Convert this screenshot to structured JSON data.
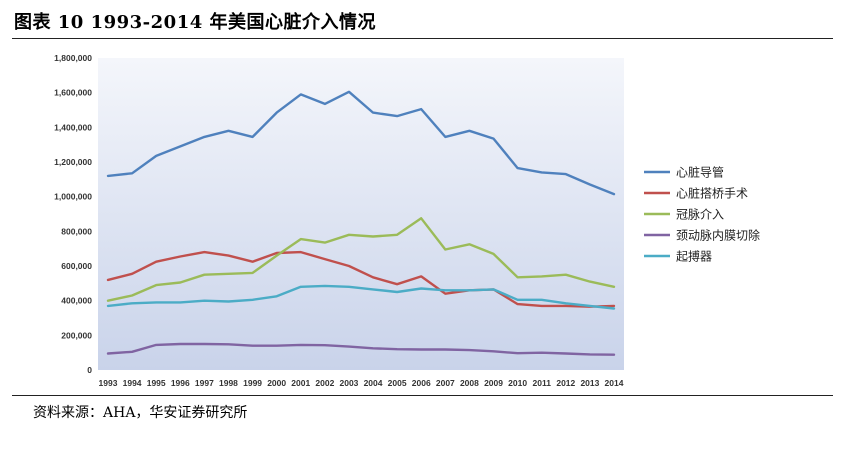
{
  "header": {
    "title": "图表 10 1993-2014 年美国心脏介入情况"
  },
  "footer": {
    "source": "资料来源：AHA，华安证券研究所"
  },
  "chart_data": {
    "type": "line",
    "title": "",
    "xlabel": "",
    "ylabel": "",
    "ylim": [
      0,
      1800000
    ],
    "yticks": [
      0,
      200000,
      400000,
      600000,
      800000,
      1000000,
      1200000,
      1400000,
      1600000,
      1800000
    ],
    "ytick_labels": [
      "0",
      "200,000",
      "400,000",
      "600,000",
      "800,000",
      "1,000,000",
      "1,200,000",
      "1,400,000",
      "1,600,000",
      "1,800,000"
    ],
    "grid": false,
    "legend": "right",
    "categories": [
      "1993",
      "1994",
      "1995",
      "1996",
      "1997",
      "1998",
      "1999",
      "2000",
      "2001",
      "2002",
      "2003",
      "2004",
      "2005",
      "2006",
      "2007",
      "2008",
      "2009",
      "2010",
      "2011",
      "2012",
      "2013",
      "2014"
    ],
    "series": [
      {
        "name": "心脏导管",
        "color": "#4f81bd",
        "values": [
          1120000,
          1135000,
          1235000,
          1290000,
          1345000,
          1380000,
          1345000,
          1485000,
          1590000,
          1535000,
          1605000,
          1485000,
          1465000,
          1505000,
          1345000,
          1380000,
          1335000,
          1165000,
          1140000,
          1130000,
          1070000,
          1015000
        ]
      },
      {
        "name": "心脏搭桥手术",
        "color": "#c0504d",
        "values": [
          520000,
          555000,
          625000,
          655000,
          680000,
          660000,
          625000,
          675000,
          680000,
          640000,
          600000,
          535000,
          495000,
          540000,
          440000,
          460000,
          465000,
          380000,
          370000,
          370000,
          365000,
          370000
        ]
      },
      {
        "name": "冠脉介入",
        "color": "#9bbb59",
        "values": [
          400000,
          430000,
          490000,
          505000,
          550000,
          555000,
          560000,
          660000,
          755000,
          735000,
          780000,
          770000,
          780000,
          875000,
          695000,
          725000,
          670000,
          535000,
          540000,
          550000,
          510000,
          480000
        ]
      },
      {
        "name": "颈动脉内膜切除",
        "color": "#8064a2",
        "values": [
          95000,
          105000,
          145000,
          150000,
          150000,
          148000,
          140000,
          140000,
          145000,
          143000,
          135000,
          125000,
          120000,
          118000,
          118000,
          115000,
          108000,
          97000,
          100000,
          95000,
          90000,
          88000
        ]
      },
      {
        "name": "起搏器",
        "color": "#4bacc6",
        "values": [
          370000,
          385000,
          390000,
          390000,
          400000,
          395000,
          405000,
          425000,
          480000,
          485000,
          480000,
          465000,
          450000,
          470000,
          460000,
          460000,
          465000,
          405000,
          405000,
          385000,
          370000,
          355000
        ]
      }
    ]
  }
}
